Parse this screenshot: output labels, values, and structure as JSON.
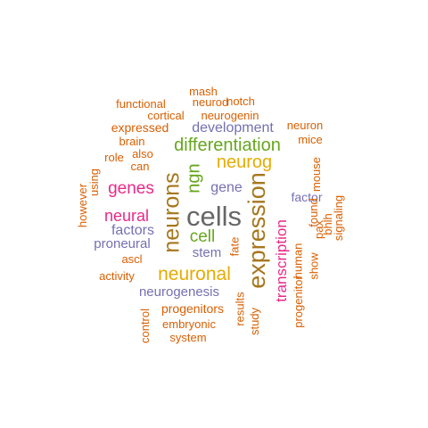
{
  "colors": {
    "orange": "#d95f02",
    "green": "#66a61e",
    "purple": "#7570b3",
    "magenta": "#e7298a",
    "gold": "#e6ab02",
    "brown": "#a6761d",
    "gray": "#666666"
  },
  "words": [
    {
      "text": "cells",
      "color": "#666666",
      "vertical": false
    },
    {
      "text": "expression",
      "color": "#a6761d",
      "vertical": true
    },
    {
      "text": "neurons",
      "color": "#a6761d",
      "vertical": true
    },
    {
      "text": "neuronal",
      "color": "#e6ab02",
      "vertical": false
    },
    {
      "text": "differentiation",
      "color": "#66a61e",
      "vertical": false
    },
    {
      "text": "neurog",
      "color": "#e6ab02",
      "vertical": false
    },
    {
      "text": "ngn",
      "color": "#66a61e",
      "vertical": true
    },
    {
      "text": "genes",
      "color": "#e7298a",
      "vertical": false
    },
    {
      "text": "neural",
      "color": "#e7298a",
      "vertical": false
    },
    {
      "text": "cell",
      "color": "#66a61e",
      "vertical": false
    },
    {
      "text": "transcription",
      "color": "#e7298a",
      "vertical": true
    },
    {
      "text": "gene",
      "color": "#7570b3",
      "vertical": false
    },
    {
      "text": "factors",
      "color": "#7570b3",
      "vertical": false
    },
    {
      "text": "development",
      "color": "#7570b3",
      "vertical": false
    },
    {
      "text": "neurogenesis",
      "color": "#7570b3",
      "vertical": false
    },
    {
      "text": "proneural",
      "color": "#7570b3",
      "vertical": false
    },
    {
      "text": "stem",
      "color": "#7570b3",
      "vertical": false
    },
    {
      "text": "factor",
      "color": "#7570b3",
      "vertical": false
    },
    {
      "text": "progenitors",
      "color": "#d95f02",
      "vertical": false
    },
    {
      "text": "neurogenin",
      "color": "#d95f02",
      "vertical": false
    },
    {
      "text": "expressed",
      "color": "#d95f02",
      "vertical": false
    },
    {
      "text": "embryonic",
      "color": "#d95f02",
      "vertical": false
    },
    {
      "text": "progenitor",
      "color": "#d95f02",
      "vertical": true
    },
    {
      "text": "system",
      "color": "#d95f02",
      "vertical": false
    },
    {
      "text": "cortical",
      "color": "#d95f02",
      "vertical": false
    },
    {
      "text": "functional",
      "color": "#d95f02",
      "vertical": false
    },
    {
      "text": "neurod",
      "color": "#d95f02",
      "vertical": false
    },
    {
      "text": "notch",
      "color": "#d95f02",
      "vertical": false
    },
    {
      "text": "mash",
      "color": "#d95f02",
      "vertical": false
    },
    {
      "text": "brain",
      "color": "#d95f02",
      "vertical": false
    },
    {
      "text": "role",
      "color": "#d95f02",
      "vertical": false
    },
    {
      "text": "also",
      "color": "#d95f02",
      "vertical": false
    },
    {
      "text": "can",
      "color": "#d95f02",
      "vertical": false
    },
    {
      "text": "ascl",
      "color": "#d95f02",
      "vertical": false
    },
    {
      "text": "activity",
      "color": "#d95f02",
      "vertical": false
    },
    {
      "text": "neuron",
      "color": "#d95f02",
      "vertical": false
    },
    {
      "text": "mice",
      "color": "#d95f02",
      "vertical": false
    },
    {
      "text": "however",
      "color": "#d95f02",
      "vertical": true
    },
    {
      "text": "using",
      "color": "#d95f02",
      "vertical": true
    },
    {
      "text": "fate",
      "color": "#d95f02",
      "vertical": true
    },
    {
      "text": "results",
      "color": "#d95f02",
      "vertical": true
    },
    {
      "text": "study",
      "color": "#d95f02",
      "vertical": true
    },
    {
      "text": "control",
      "color": "#d95f02",
      "vertical": true
    },
    {
      "text": "human",
      "color": "#d95f02",
      "vertical": true
    },
    {
      "text": "pax",
      "color": "#d95f02",
      "vertical": true
    },
    {
      "text": "found",
      "color": "#d95f02",
      "vertical": true
    },
    {
      "text": "mouse",
      "color": "#d95f02",
      "vertical": true
    },
    {
      "text": "bhlh",
      "color": "#d95f02",
      "vertical": true
    },
    {
      "text": "signaling",
      "color": "#d95f02",
      "vertical": true
    },
    {
      "text": "show",
      "color": "#d95f02",
      "vertical": true
    }
  ]
}
